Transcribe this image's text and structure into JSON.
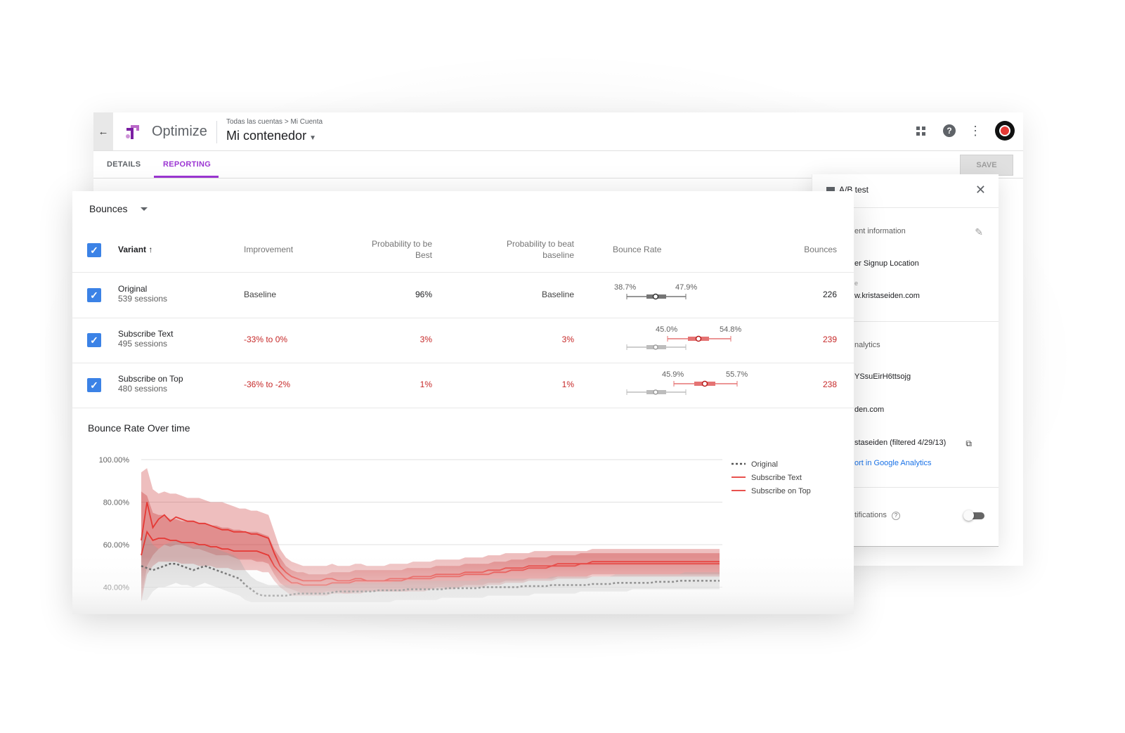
{
  "header": {
    "app_name": "Optimize",
    "breadcrumb_root": "Todas las cuentas",
    "breadcrumb_sep": ">",
    "breadcrumb_current": "Mi Cuenta",
    "container": "Mi contenedor",
    "back_icon": "arrow-back-icon",
    "icons": [
      "apps-grid-icon",
      "help-icon",
      "more-vert-icon",
      "avatar"
    ]
  },
  "tabs": [
    {
      "label": "DETAILS",
      "active": false
    },
    {
      "label": "REPORTING",
      "active": true
    }
  ],
  "save_label": "SAVE",
  "side_panel": {
    "title": "A/B test",
    "lines": [
      "ent information",
      "er Signup Location",
      "e",
      "w.kristaseiden.com",
      "nalytics",
      "YSsuEirH6ttsojg",
      "den.com",
      "staseiden (filtered 4/29/13)",
      "ort in Google Analytics",
      "tifications"
    ],
    "toggle_on": false
  },
  "report": {
    "metric": "Bounces",
    "columns": {
      "variant": "Variant",
      "improvement": "Improvement",
      "prob_best_1": "Probability to be",
      "prob_best_2": "Best",
      "prob_beat_1": "Probability to beat",
      "prob_beat_2": "baseline",
      "bounce_rate": "Bounce Rate",
      "bounces": "Bounces"
    },
    "rows": [
      {
        "name": "Original",
        "sessions": "539 sessions",
        "improvement": "Baseline",
        "prob_best": "96%",
        "prob_beat": "Baseline",
        "ci_low": "38.7%",
        "ci_high": "47.9%",
        "bounces": "226",
        "negative": false
      },
      {
        "name": "Subscribe Text",
        "sessions": "495 sessions",
        "improvement": "-33% to 0%",
        "prob_best": "3%",
        "prob_beat": "3%",
        "ci_low": "45.0%",
        "ci_high": "54.8%",
        "bounces": "239",
        "negative": true
      },
      {
        "name": "Subscribe on Top",
        "sessions": "480 sessions",
        "improvement": "-36% to -2%",
        "prob_best": "1%",
        "prob_beat": "1%",
        "ci_low": "45.9%",
        "ci_high": "55.7%",
        "bounces": "238",
        "negative": true
      }
    ]
  },
  "colors": {
    "accent": "#9c36d3",
    "checkbox": "#3b82e6",
    "negative": "#c62828",
    "original_line": "#555555",
    "variant_line": "#e53935",
    "variant_band": "#c62828",
    "original_band": "#9e9e9e"
  },
  "chart_data": {
    "type": "line",
    "title": "Bounce Rate Over time",
    "y_ticks": [
      "100.00%",
      "80.00%",
      "60.00%",
      "40.00%"
    ],
    "ylim": [
      33,
      100
    ],
    "x": [
      0,
      1,
      2,
      3,
      4,
      5,
      6,
      7,
      8,
      9,
      10,
      11,
      12,
      13,
      14,
      15,
      16,
      17,
      18,
      19,
      20,
      21,
      22,
      23,
      24,
      25,
      26,
      27,
      28,
      29,
      30,
      31,
      32,
      33,
      34,
      35,
      36,
      37,
      38,
      39,
      40,
      41,
      42,
      43,
      44,
      45,
      46,
      47,
      48,
      49,
      50,
      51,
      52,
      53,
      54,
      55,
      56,
      57,
      58,
      59,
      60,
      61,
      62,
      63,
      64,
      65,
      66,
      67,
      68,
      69,
      70,
      71,
      72,
      73,
      74,
      75,
      76,
      77,
      78,
      79,
      80,
      81,
      82,
      83,
      84,
      85,
      86,
      87,
      88,
      89,
      90,
      91,
      92,
      93,
      94,
      95,
      96,
      97,
      98,
      99,
      100
    ],
    "legend": [
      "Original",
      "Subscribe Text",
      "Subscribe on Top"
    ],
    "legend_position": "top-right",
    "series": [
      {
        "name": "Original",
        "style": "dotted",
        "values": [
          50,
          49,
          48,
          49,
          50,
          51,
          51,
          50,
          49,
          48,
          49,
          50,
          49,
          48,
          47,
          46,
          45,
          44,
          41,
          39,
          37,
          36,
          36,
          36,
          36,
          36,
          36.5,
          37,
          37,
          37,
          37,
          37,
          37,
          37.5,
          38,
          38,
          38,
          38,
          38,
          38,
          38,
          38.5,
          38.5,
          38.5,
          38.5,
          38.5,
          39,
          39,
          39,
          39,
          39,
          39,
          39,
          39.5,
          39.5,
          39.5,
          39.5,
          39.5,
          39.5,
          40,
          40,
          40,
          40,
          40,
          40,
          40,
          40.5,
          40.5,
          40.5,
          40.5,
          40.5,
          41,
          41,
          41,
          41,
          41,
          41,
          41,
          41.5,
          41.5,
          41.5,
          41.5,
          42,
          42,
          42,
          42,
          42,
          42,
          42,
          42.5,
          42.5,
          42.5,
          42.5,
          43,
          43,
          43,
          43,
          43,
          43,
          43,
          43
        ]
      },
      {
        "name": "Subscribe Text",
        "style": "solid",
        "values": [
          62,
          80,
          68,
          72,
          74,
          71,
          73,
          72,
          71,
          71,
          70,
          70,
          69,
          68,
          67,
          67,
          66,
          66,
          66,
          65,
          65,
          64,
          63,
          56,
          50,
          47,
          45,
          44,
          43,
          43,
          43,
          43,
          44,
          44,
          43,
          43,
          43,
          44,
          44,
          43,
          43,
          43,
          43,
          44,
          44,
          44,
          44,
          45,
          45,
          45,
          45,
          46,
          46,
          46,
          46,
          46,
          47,
          47,
          47,
          47,
          48,
          48,
          48,
          49,
          49,
          49,
          49,
          50,
          50,
          50,
          50,
          50,
          51,
          51,
          51,
          51,
          51,
          51,
          52,
          52,
          52,
          52,
          52,
          52,
          52,
          52,
          52,
          52,
          52,
          52,
          52,
          52,
          52,
          52,
          52,
          52,
          52,
          52,
          52,
          52,
          52
        ]
      },
      {
        "name": "Subscribe on Top",
        "style": "solid",
        "values": [
          55,
          66,
          62,
          63,
          63,
          62,
          62,
          61,
          61,
          61,
          60,
          60,
          59,
          59,
          58,
          58,
          57,
          57,
          57,
          57,
          57,
          56,
          55,
          50,
          47,
          44,
          42,
          42,
          41,
          41,
          41,
          41,
          41,
          42,
          42,
          42,
          42,
          43,
          43,
          43,
          43,
          43,
          43,
          43,
          43,
          43,
          44,
          44,
          44,
          44,
          44,
          45,
          45,
          45,
          45,
          45,
          46,
          46,
          46,
          46,
          46,
          47,
          47,
          47,
          48,
          48,
          48,
          49,
          49,
          49,
          49,
          50,
          50,
          50,
          50,
          50,
          51,
          51,
          51,
          51,
          51,
          51,
          51,
          51,
          51,
          51,
          51,
          51,
          51,
          51,
          51,
          51,
          51,
          51,
          51,
          51,
          51,
          51,
          51,
          51,
          51
        ]
      }
    ],
    "bands": [
      {
        "series": "Original",
        "low": [
          34,
          34,
          38,
          40,
          40,
          41,
          42,
          41,
          41,
          40,
          41,
          42,
          41,
          40,
          39,
          38,
          37,
          36,
          34,
          33,
          33,
          33,
          33,
          33,
          33,
          33,
          33,
          33,
          33,
          33,
          33,
          33,
          33,
          33,
          33,
          33,
          33,
          33,
          33,
          33,
          33,
          33,
          33,
          33,
          34,
          34,
          34,
          34,
          34,
          34,
          34,
          34,
          35,
          35,
          35,
          35,
          35,
          35,
          35,
          35,
          36,
          36,
          36,
          36,
          36,
          36,
          36,
          36,
          37,
          37,
          37,
          37,
          37,
          37,
          37,
          37,
          38,
          38,
          38,
          38,
          38,
          38,
          38,
          38,
          38,
          39,
          39,
          39,
          39,
          39,
          39,
          39,
          39,
          39,
          39,
          39,
          39,
          39,
          39,
          39,
          39
        ],
        "high": [
          66,
          64,
          60,
          58,
          60,
          61,
          62,
          61,
          60,
          59,
          60,
          60,
          59,
          58,
          57,
          56,
          55,
          53,
          48,
          45,
          43,
          42,
          41,
          41,
          41,
          41,
          41,
          41,
          41,
          41,
          41,
          41,
          41,
          42,
          42,
          42,
          42,
          42,
          42,
          42,
          42,
          42,
          42,
          42,
          43,
          43,
          43,
          43,
          43,
          43,
          43,
          43,
          43,
          43,
          43,
          43,
          43,
          43,
          43,
          44,
          44,
          44,
          44,
          44,
          44,
          44,
          44,
          44,
          44,
          44,
          44,
          45,
          45,
          45,
          45,
          45,
          45,
          45,
          45,
          45,
          45,
          45,
          46,
          46,
          46,
          46,
          46,
          46,
          46,
          46,
          46,
          46,
          46,
          46,
          47,
          47,
          47,
          47,
          47,
          47,
          47
        ]
      },
      {
        "series": "Subscribe Text",
        "low": [
          33,
          50,
          55,
          58,
          60,
          59,
          60,
          60,
          59,
          58,
          58,
          57,
          56,
          55,
          55,
          55,
          54,
          53,
          53,
          53,
          52,
          52,
          51,
          46,
          42,
          40,
          39,
          38,
          37,
          37,
          37,
          37,
          38,
          38,
          38,
          37,
          37,
          38,
          38,
          38,
          38,
          38,
          38,
          38,
          38,
          38,
          38,
          39,
          39,
          39,
          39,
          40,
          40,
          40,
          40,
          40,
          41,
          41,
          41,
          41,
          42,
          42,
          42,
          43,
          43,
          43,
          43,
          44,
          44,
          44,
          44,
          44,
          45,
          45,
          45,
          45,
          45,
          45,
          46,
          46,
          46,
          46,
          46,
          46,
          46,
          46,
          46,
          46,
          46,
          46,
          46,
          46,
          46,
          46,
          46,
          46,
          46,
          46,
          46,
          46,
          46
        ],
        "high": [
          94,
          96,
          86,
          84,
          85,
          84,
          84,
          83,
          82,
          82,
          82,
          81,
          80,
          80,
          80,
          79,
          78,
          77,
          77,
          76,
          76,
          75,
          74,
          66,
          58,
          54,
          52,
          51,
          50,
          50,
          50,
          50,
          50,
          51,
          50,
          50,
          50,
          51,
          51,
          50,
          50,
          50,
          50,
          51,
          51,
          51,
          51,
          52,
          52,
          52,
          52,
          53,
          53,
          53,
          53,
          53,
          54,
          54,
          54,
          54,
          55,
          55,
          55,
          56,
          56,
          56,
          56,
          56,
          57,
          57,
          57,
          57,
          57,
          57,
          57,
          57,
          57,
          57,
          58,
          58,
          58,
          58,
          58,
          58,
          58,
          58,
          58,
          58,
          58,
          58,
          58,
          58,
          58,
          58,
          58,
          58,
          58,
          58,
          58,
          58,
          58
        ]
      },
      {
        "series": "Subscribe on Top",
        "low": [
          33,
          46,
          50,
          52,
          52,
          52,
          52,
          51,
          51,
          51,
          50,
          50,
          50,
          49,
          49,
          49,
          48,
          48,
          48,
          48,
          48,
          47,
          47,
          43,
          40,
          38,
          36,
          36,
          36,
          36,
          36,
          36,
          36,
          37,
          37,
          37,
          37,
          37,
          37,
          38,
          38,
          38,
          38,
          38,
          38,
          38,
          38,
          38,
          38,
          38,
          39,
          39,
          39,
          39,
          39,
          40,
          40,
          40,
          40,
          40,
          41,
          41,
          41,
          42,
          42,
          42,
          42,
          43,
          43,
          43,
          43,
          43,
          44,
          44,
          44,
          44,
          44,
          44,
          45,
          45,
          45,
          45,
          45,
          45,
          45,
          45,
          45,
          45,
          45,
          45,
          45,
          45,
          45,
          45,
          45,
          45,
          45,
          45,
          45,
          45,
          45
        ],
        "high": [
          85,
          83,
          75,
          74,
          74,
          72,
          72,
          71,
          71,
          71,
          70,
          70,
          69,
          69,
          68,
          68,
          67,
          67,
          66,
          66,
          66,
          65,
          64,
          58,
          54,
          50,
          48,
          47,
          47,
          46,
          46,
          46,
          46,
          47,
          47,
          47,
          47,
          48,
          48,
          48,
          48,
          48,
          48,
          48,
          48,
          48,
          49,
          49,
          49,
          49,
          49,
          50,
          50,
          50,
          50,
          50,
          51,
          51,
          51,
          51,
          51,
          52,
          52,
          52,
          53,
          53,
          53,
          54,
          54,
          54,
          54,
          55,
          55,
          55,
          55,
          55,
          56,
          56,
          56,
          56,
          56,
          56,
          56,
          56,
          56,
          56,
          56,
          56,
          56,
          56,
          56,
          56,
          56,
          56,
          56,
          56,
          56,
          56,
          56,
          56,
          56
        ]
      }
    ]
  }
}
